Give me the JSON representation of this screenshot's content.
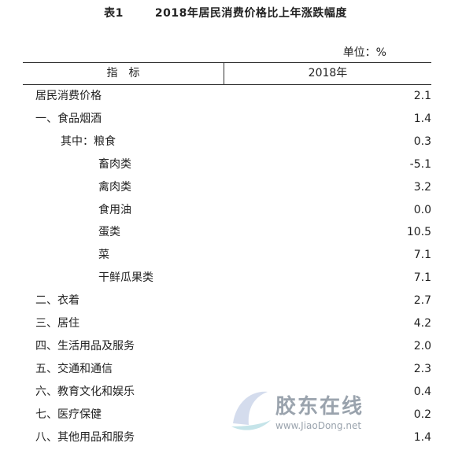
{
  "title": {
    "table_no": "表1",
    "text": "2018年居民消费价格比上年涨跌幅度"
  },
  "unit": "单位：%",
  "header": {
    "indicator": "指　标",
    "year": "2018年"
  },
  "rows": [
    {
      "label": "居民消费价格",
      "value": "2.1",
      "level": 0
    },
    {
      "label": "一、食品烟酒",
      "value": "1.4",
      "level": 1
    },
    {
      "label": "其中：粮食",
      "value": "0.3",
      "level": 2
    },
    {
      "label": "畜肉类",
      "value": "-5.1",
      "level": 3
    },
    {
      "label": "禽肉类",
      "value": "3.2",
      "level": 3
    },
    {
      "label": "食用油",
      "value": "0.0",
      "level": 3
    },
    {
      "label": "蛋类",
      "value": "10.5",
      "level": 3
    },
    {
      "label": "菜",
      "value": "7.1",
      "level": 3
    },
    {
      "label": "干鲜瓜果类",
      "value": "7.1",
      "level": 3
    },
    {
      "label": "二、衣着",
      "value": "2.7",
      "level": 1
    },
    {
      "label": "三、居住",
      "value": "4.2",
      "level": 1
    },
    {
      "label": "四、生活用品及服务",
      "value": "2.0",
      "level": 1
    },
    {
      "label": "五、交通和通信",
      "value": "2.3",
      "level": 1
    },
    {
      "label": "六、教育文化和娱乐",
      "value": "0.4",
      "level": 1
    },
    {
      "label": "七、医疗保健",
      "value": "0.2",
      "level": 1
    },
    {
      "label": "八、其他用品和服务",
      "value": "1.4",
      "level": 1
    }
  ],
  "watermark": {
    "name": "胶东在线",
    "url": "www.JiaoDong.net",
    "icon": "jiaodong-logo-icon",
    "color": "#9aa3ad"
  }
}
